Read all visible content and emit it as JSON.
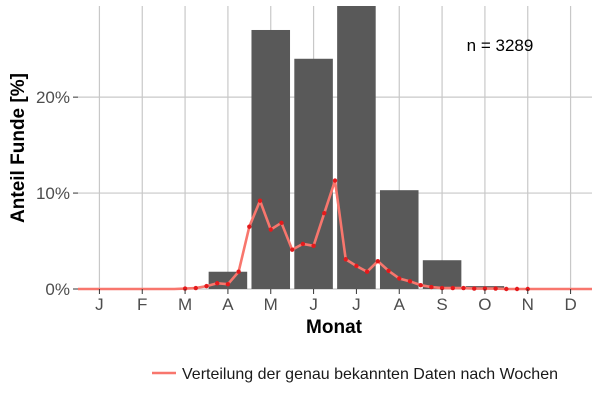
{
  "chart_data": {
    "type": "bar",
    "title": "",
    "xlabel": "Monat",
    "ylabel": "Anteil Funde [%]",
    "categories": [
      "J",
      "F",
      "M",
      "A",
      "M",
      "J",
      "J",
      "A",
      "S",
      "O",
      "N",
      "D"
    ],
    "values": [
      0,
      0,
      0,
      1.8,
      27,
      24,
      29.5,
      10.3,
      3.0,
      0.3,
      0.05,
      0
    ],
    "ylim": [
      0,
      29.5
    ],
    "y_ticks": [
      0,
      10,
      20
    ],
    "y_tick_labels": [
      "0%",
      "10%",
      "20%"
    ],
    "grid": true,
    "annotation": "n = 3289",
    "colors": {
      "bar": "#595959",
      "line": "#f8766d",
      "point": "#e41a1c",
      "grid": "#c8c8c8"
    },
    "series": [
      {
        "name": "Verteilung der genau bekannten Daten nach Wochen",
        "type": "line",
        "x": [
          0.5,
          0.75,
          1,
          1.25,
          1.5,
          1.75,
          2,
          2.25,
          2.5,
          2.75,
          3,
          3.25,
          3.5,
          3.75,
          4,
          4.25,
          4.5,
          4.75,
          5,
          5.25,
          5.5,
          5.75,
          6,
          6.25,
          6.5,
          6.75,
          7,
          7.25,
          7.5,
          7.75,
          8,
          8.25,
          8.5,
          8.75,
          9,
          9.25,
          9.5,
          9.75,
          10,
          10.25,
          10.5,
          10.75,
          11,
          11.25,
          11.5,
          11.75,
          12,
          12.25,
          12.5
        ],
        "values": [
          0,
          0,
          0,
          0,
          0,
          0,
          0,
          0,
          0,
          0,
          0.05,
          0.1,
          0.3,
          0.6,
          0.5,
          1.8,
          6.5,
          9.2,
          6.2,
          6.9,
          4.1,
          4.7,
          4.5,
          7.9,
          11.3,
          3.1,
          2.4,
          1.8,
          2.9,
          1.9,
          1.1,
          0.8,
          0.4,
          0.2,
          0.1,
          0.1,
          0.1,
          0.05,
          0.05,
          0.05,
          0,
          0,
          0,
          0,
          0,
          0,
          0,
          0,
          0
        ]
      }
    ],
    "legend": {
      "position": "bottom-right"
    }
  }
}
